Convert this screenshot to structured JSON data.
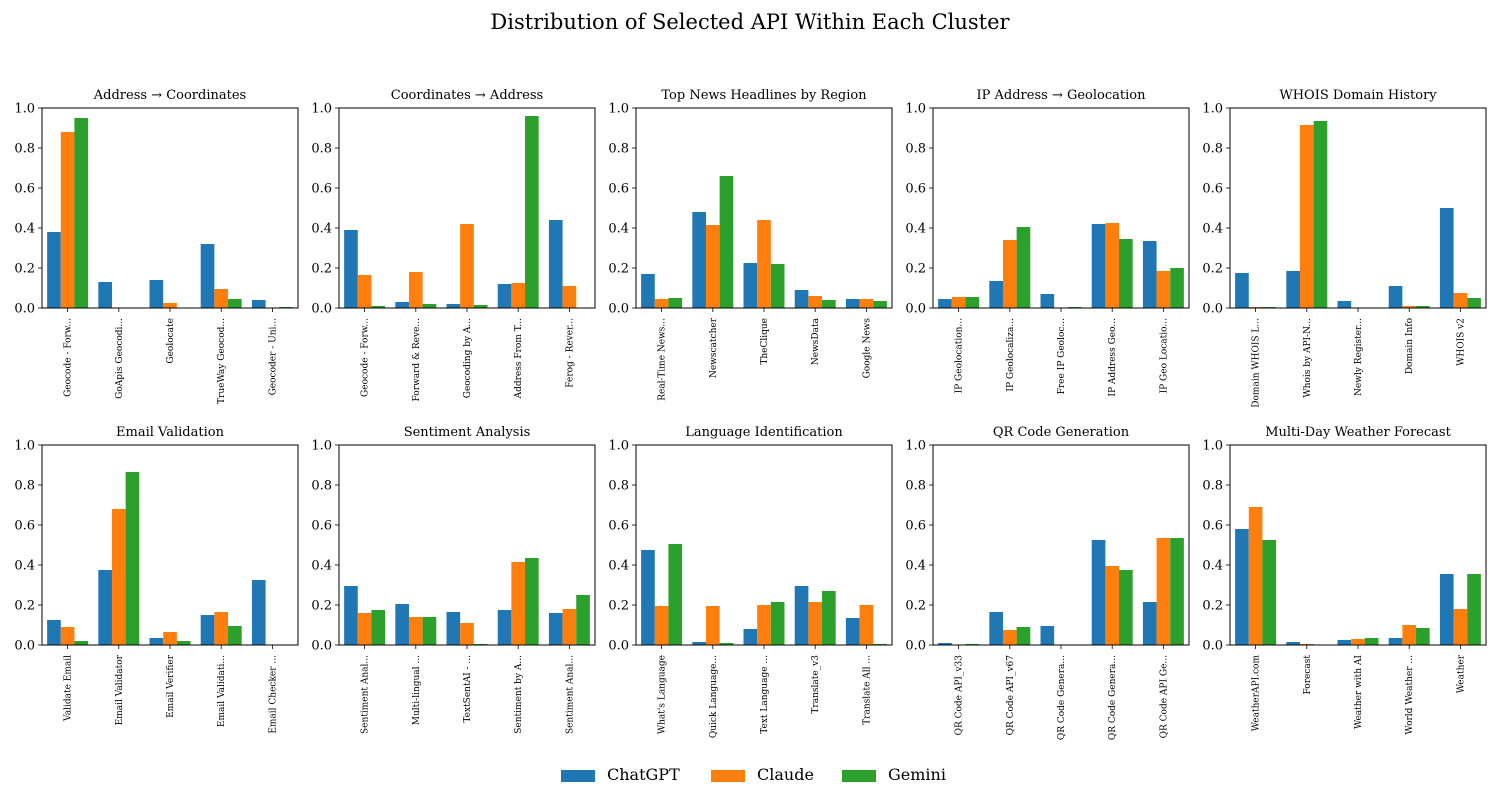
{
  "figure": {
    "title": "Distribution of Selected API Within Each Cluster",
    "colors": {
      "ChatGPT": "#1f77b4",
      "Claude": "#ff7f0e",
      "Gemini": "#2ca02c"
    },
    "legend": {
      "placement": "bottom-center",
      "items": [
        "ChatGPT",
        "Claude",
        "Gemini"
      ]
    }
  },
  "chart_data": [
    {
      "type": "bar",
      "title": "Address → Coordinates",
      "ylim": [
        0,
        1
      ],
      "yticks": [
        "0.0",
        "0.2",
        "0.4",
        "0.6",
        "0.8",
        "1.0"
      ],
      "categories": [
        "Geocode - Forw...",
        "GoApis Geocodi...",
        "Geolocate",
        "TrueWay Geocod...",
        "Geocoder - Uni..."
      ],
      "series": [
        {
          "name": "ChatGPT",
          "values": [
            0.38,
            0.13,
            0.14,
            0.32,
            0.04
          ]
        },
        {
          "name": "Claude",
          "values": [
            0.88,
            0.0,
            0.025,
            0.095,
            0.0
          ]
        },
        {
          "name": "Gemini",
          "values": [
            0.95,
            0.0,
            0.0,
            0.045,
            0.005
          ]
        }
      ]
    },
    {
      "type": "bar",
      "title": "Coordinates → Address",
      "ylim": [
        0,
        1
      ],
      "yticks": [
        "0.0",
        "0.2",
        "0.4",
        "0.6",
        "0.8",
        "1.0"
      ],
      "categories": [
        "Geocode - Forw...",
        "Forward & Reve...",
        "Geocoding by A...",
        "Address From T...",
        "Ferog - Rever..."
      ],
      "series": [
        {
          "name": "ChatGPT",
          "values": [
            0.39,
            0.03,
            0.02,
            0.12,
            0.44
          ]
        },
        {
          "name": "Claude",
          "values": [
            0.165,
            0.18,
            0.42,
            0.125,
            0.11
          ]
        },
        {
          "name": "Gemini",
          "values": [
            0.01,
            0.02,
            0.015,
            0.96,
            0.0
          ]
        }
      ]
    },
    {
      "type": "bar",
      "title": "Top News Headlines by Region",
      "ylim": [
        0,
        1
      ],
      "yticks": [
        "0.0",
        "0.2",
        "0.4",
        "0.6",
        "0.8",
        "1.0"
      ],
      "categories": [
        "Real-Time News...",
        "Newscatcher",
        "TheClique",
        "NewsData",
        "Google News"
      ],
      "series": [
        {
          "name": "ChatGPT",
          "values": [
            0.17,
            0.48,
            0.225,
            0.09,
            0.045
          ]
        },
        {
          "name": "Claude",
          "values": [
            0.045,
            0.415,
            0.44,
            0.06,
            0.045
          ]
        },
        {
          "name": "Gemini",
          "values": [
            0.05,
            0.66,
            0.22,
            0.04,
            0.035
          ]
        }
      ]
    },
    {
      "type": "bar",
      "title": "IP Address → Geolocation",
      "ylim": [
        0,
        1
      ],
      "yticks": [
        "0.0",
        "0.2",
        "0.4",
        "0.6",
        "0.8",
        "1.0"
      ],
      "categories": [
        "IP Geolocation...",
        "IP Geolocaliza...",
        "Free IP Geoloc...",
        "IP Address Geo...",
        "IP Geo Locatio..."
      ],
      "series": [
        {
          "name": "ChatGPT",
          "values": [
            0.045,
            0.135,
            0.07,
            0.42,
            0.335
          ]
        },
        {
          "name": "Claude",
          "values": [
            0.055,
            0.34,
            0.0,
            0.425,
            0.185
          ]
        },
        {
          "name": "Gemini",
          "values": [
            0.055,
            0.405,
            0.005,
            0.345,
            0.2
          ]
        }
      ]
    },
    {
      "type": "bar",
      "title": "WHOIS Domain History",
      "ylim": [
        0,
        1
      ],
      "yticks": [
        "0.0",
        "0.2",
        "0.4",
        "0.6",
        "0.8",
        "1.0"
      ],
      "categories": [
        "Domain WHOIS L...",
        "Whois by API-N...",
        "Newly Register...",
        "Domain Info",
        "WHOIS v2"
      ],
      "series": [
        {
          "name": "ChatGPT",
          "values": [
            0.175,
            0.185,
            0.035,
            0.11,
            0.5
          ]
        },
        {
          "name": "Claude",
          "values": [
            0.005,
            0.915,
            0.0,
            0.01,
            0.075
          ]
        },
        {
          "name": "Gemini",
          "values": [
            0.005,
            0.935,
            0.0,
            0.01,
            0.05
          ]
        }
      ]
    },
    {
      "type": "bar",
      "title": "Email Validation",
      "ylim": [
        0,
        1
      ],
      "yticks": [
        "0.0",
        "0.2",
        "0.4",
        "0.6",
        "0.8",
        "1.0"
      ],
      "categories": [
        "Validate Email",
        "Email Validator",
        "Email Verifier",
        "Email Validati...",
        "Email Checker ..."
      ],
      "series": [
        {
          "name": "ChatGPT",
          "values": [
            0.125,
            0.375,
            0.035,
            0.15,
            0.325
          ]
        },
        {
          "name": "Claude",
          "values": [
            0.09,
            0.68,
            0.065,
            0.165,
            0.0
          ]
        },
        {
          "name": "Gemini",
          "values": [
            0.02,
            0.865,
            0.02,
            0.095,
            0.0
          ]
        }
      ]
    },
    {
      "type": "bar",
      "title": "Sentiment Analysis",
      "ylim": [
        0,
        1
      ],
      "yticks": [
        "0.0",
        "0.2",
        "0.4",
        "0.6",
        "0.8",
        "1.0"
      ],
      "categories": [
        "Sentiment Anal...",
        "Multi-lingual ...",
        "TextSentAI - ...",
        "Sentiment by A...",
        "Sentiment Anal..."
      ],
      "series": [
        {
          "name": "ChatGPT",
          "values": [
            0.295,
            0.205,
            0.165,
            0.175,
            0.16
          ]
        },
        {
          "name": "Claude",
          "values": [
            0.16,
            0.14,
            0.11,
            0.415,
            0.18
          ]
        },
        {
          "name": "Gemini",
          "values": [
            0.175,
            0.14,
            0.005,
            0.435,
            0.25
          ]
        }
      ]
    },
    {
      "type": "bar",
      "title": "Language Identification",
      "ylim": [
        0,
        1
      ],
      "yticks": [
        "0.0",
        "0.2",
        "0.4",
        "0.6",
        "0.8",
        "1.0"
      ],
      "categories": [
        "What's Language",
        "Quick Language...",
        "Text Language ...",
        "Translate_v3",
        "Translate All ..."
      ],
      "series": [
        {
          "name": "ChatGPT",
          "values": [
            0.475,
            0.015,
            0.08,
            0.295,
            0.135
          ]
        },
        {
          "name": "Claude",
          "values": [
            0.195,
            0.195,
            0.2,
            0.215,
            0.2
          ]
        },
        {
          "name": "Gemini",
          "values": [
            0.505,
            0.01,
            0.215,
            0.27,
            0.005
          ]
        }
      ]
    },
    {
      "type": "bar",
      "title": "QR Code Generation",
      "ylim": [
        0,
        1
      ],
      "yticks": [
        "0.0",
        "0.2",
        "0.4",
        "0.6",
        "0.8",
        "1.0"
      ],
      "categories": [
        "QR Code API_v33",
        "QR Code API_v67",
        "QR Code Genera...",
        "QR Code Genera...",
        "QR Code API Ge..."
      ],
      "series": [
        {
          "name": "ChatGPT",
          "values": [
            0.01,
            0.165,
            0.095,
            0.525,
            0.215
          ]
        },
        {
          "name": "Claude",
          "values": [
            0.0,
            0.075,
            0.0,
            0.395,
            0.535
          ]
        },
        {
          "name": "Gemini",
          "values": [
            0.005,
            0.09,
            0.0,
            0.375,
            0.535
          ]
        }
      ]
    },
    {
      "type": "bar",
      "title": "Multi-Day Weather Forecast",
      "ylim": [
        0,
        1
      ],
      "yticks": [
        "0.0",
        "0.2",
        "0.4",
        "0.6",
        "0.8",
        "1.0"
      ],
      "categories": [
        "WeatherAPI.com",
        "Forecast",
        "Weather with AI",
        "World Weather ...",
        "Weather"
      ],
      "series": [
        {
          "name": "ChatGPT",
          "values": [
            0.58,
            0.015,
            0.025,
            0.035,
            0.355
          ]
        },
        {
          "name": "Claude",
          "values": [
            0.69,
            0.005,
            0.03,
            0.1,
            0.18
          ]
        },
        {
          "name": "Gemini",
          "values": [
            0.525,
            0.0,
            0.035,
            0.085,
            0.355
          ]
        }
      ]
    }
  ]
}
